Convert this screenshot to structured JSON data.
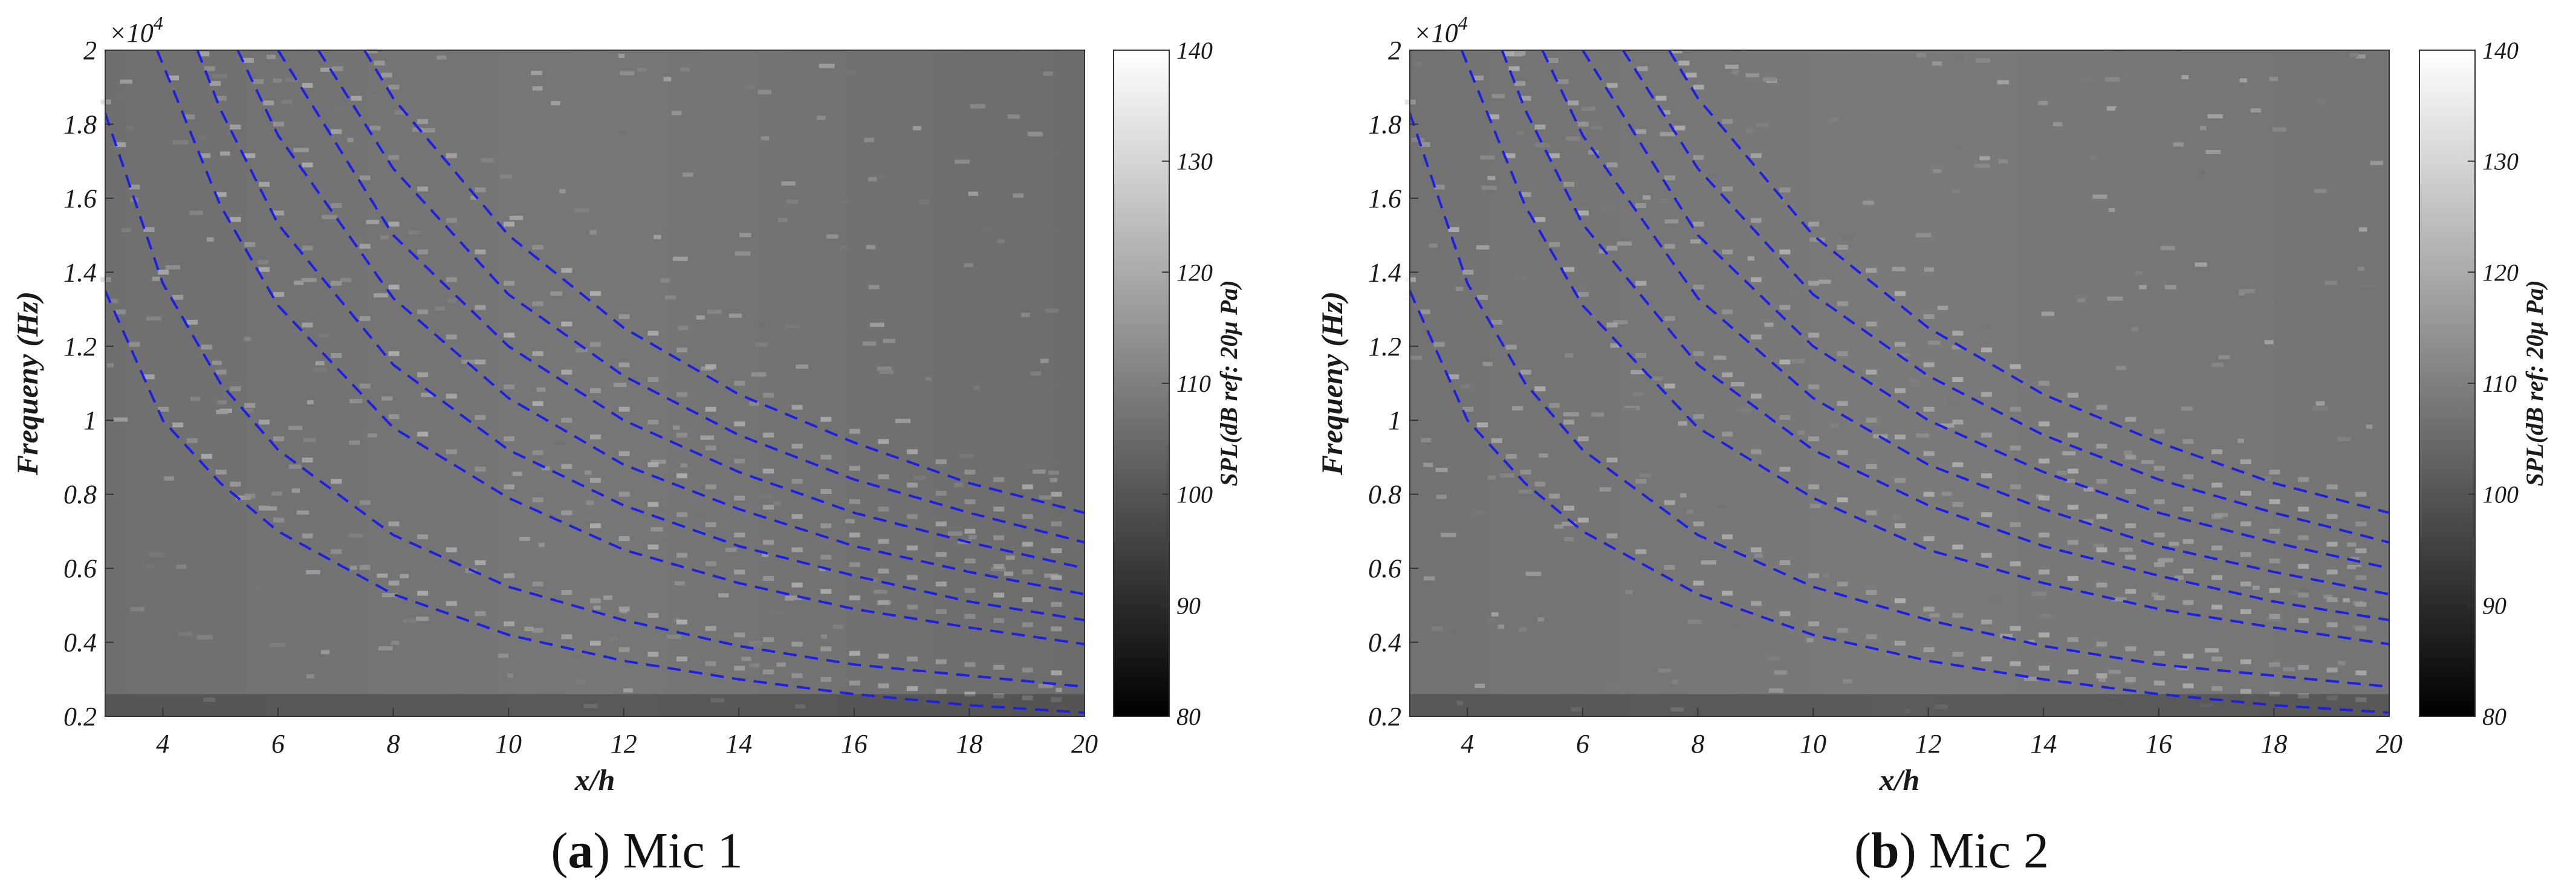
{
  "chart_data": [
    {
      "type": "heatmap",
      "caption_letter": "a",
      "caption_text": "Mic 1",
      "xlabel": "x/h",
      "ylabel": "Frequeny (Hz)",
      "y_multiplier": "×10",
      "y_exponent": "4",
      "xlim": [
        3,
        20
      ],
      "ylim": [
        0.2,
        2
      ],
      "xticks": [
        "4",
        "6",
        "8",
        "10",
        "12",
        "14",
        "16",
        "18",
        "20"
      ],
      "yticks": [
        "0.2",
        "0.4",
        "0.6",
        "0.8",
        "1",
        "1.2",
        "1.4",
        "1.6",
        "1.8",
        "2"
      ],
      "colorbar": {
        "label": "SPL(dB ref: 20μ Pa)",
        "range": [
          80,
          140
        ],
        "ticks": [
          "80",
          "90",
          "100",
          "110",
          "120",
          "130",
          "140"
        ]
      },
      "curve_color": "#1f1fe0",
      "curve_style": "dashed",
      "curves": [
        {
          "x": [
            3,
            4,
            5,
            6,
            8,
            10,
            12,
            14,
            16,
            18,
            20
          ],
          "y": [
            1.35,
            1.0,
            0.83,
            0.7,
            0.53,
            0.42,
            0.35,
            0.3,
            0.26,
            0.23,
            0.21
          ]
        },
        {
          "x": [
            3,
            4,
            5,
            6,
            8,
            10,
            12,
            14,
            16,
            18,
            20
          ],
          "y": [
            1.83,
            1.37,
            1.1,
            0.92,
            0.69,
            0.55,
            0.46,
            0.39,
            0.34,
            0.31,
            0.28
          ]
        },
        {
          "x": [
            3.9,
            5,
            6,
            8,
            10,
            12,
            14,
            16,
            18,
            20
          ],
          "y": [
            2.0,
            1.58,
            1.31,
            0.98,
            0.79,
            0.65,
            0.56,
            0.49,
            0.44,
            0.395
          ]
        },
        {
          "x": [
            4.6,
            5,
            6,
            8,
            10,
            12,
            14,
            16,
            18,
            20
          ],
          "y": [
            2.0,
            1.84,
            1.53,
            1.15,
            0.92,
            0.77,
            0.66,
            0.58,
            0.51,
            0.46
          ]
        },
        {
          "x": [
            5.3,
            6,
            8,
            10,
            12,
            14,
            16,
            18,
            20
          ],
          "y": [
            2.0,
            1.77,
            1.33,
            1.06,
            0.88,
            0.76,
            0.66,
            0.59,
            0.53
          ]
        },
        {
          "x": [
            6.0,
            8,
            10,
            12,
            14,
            16,
            18,
            20
          ],
          "y": [
            2.0,
            1.5,
            1.2,
            1.0,
            0.86,
            0.75,
            0.67,
            0.6
          ]
        },
        {
          "x": [
            6.7,
            8,
            10,
            12,
            14,
            16,
            18,
            20
          ],
          "y": [
            2.0,
            1.68,
            1.34,
            1.12,
            0.96,
            0.84,
            0.75,
            0.67
          ]
        },
        {
          "x": [
            7.5,
            8,
            10,
            12,
            14,
            16,
            18,
            20
          ],
          "y": [
            2.0,
            1.87,
            1.5,
            1.25,
            1.07,
            0.94,
            0.83,
            0.75
          ]
        }
      ]
    },
    {
      "type": "heatmap",
      "caption_letter": "b",
      "caption_text": "Mic 2",
      "xlabel": "x/h",
      "ylabel": "Frequeny (Hz)",
      "y_multiplier": "×10",
      "y_exponent": "4",
      "xlim": [
        3,
        20
      ],
      "ylim": [
        0.2,
        2
      ],
      "xticks": [
        "4",
        "6",
        "8",
        "10",
        "12",
        "14",
        "16",
        "18",
        "20"
      ],
      "yticks": [
        "0.2",
        "0.4",
        "0.6",
        "0.8",
        "1",
        "1.2",
        "1.4",
        "1.6",
        "1.8",
        "2"
      ],
      "colorbar": {
        "label": "SPL(dB ref: 20μ Pa)",
        "range": [
          80,
          140
        ],
        "ticks": [
          "80",
          "90",
          "100",
          "110",
          "120",
          "130",
          "140"
        ]
      },
      "curve_color": "#1f1fe0",
      "curve_style": "dashed",
      "curves": [
        {
          "x": [
            3,
            4,
            5,
            6,
            8,
            10,
            12,
            14,
            16,
            18,
            20
          ],
          "y": [
            1.35,
            1.0,
            0.83,
            0.7,
            0.53,
            0.42,
            0.35,
            0.3,
            0.26,
            0.23,
            0.21
          ]
        },
        {
          "x": [
            3,
            4,
            5,
            6,
            8,
            10,
            12,
            14,
            16,
            18,
            20
          ],
          "y": [
            1.83,
            1.37,
            1.1,
            0.92,
            0.69,
            0.55,
            0.46,
            0.39,
            0.34,
            0.31,
            0.28
          ]
        },
        {
          "x": [
            3.9,
            5,
            6,
            8,
            10,
            12,
            14,
            16,
            18,
            20
          ],
          "y": [
            2.0,
            1.58,
            1.31,
            0.98,
            0.79,
            0.65,
            0.56,
            0.49,
            0.44,
            0.395
          ]
        },
        {
          "x": [
            4.6,
            5,
            6,
            8,
            10,
            12,
            14,
            16,
            18,
            20
          ],
          "y": [
            2.0,
            1.84,
            1.53,
            1.15,
            0.92,
            0.77,
            0.66,
            0.58,
            0.51,
            0.46
          ]
        },
        {
          "x": [
            5.3,
            6,
            8,
            10,
            12,
            14,
            16,
            18,
            20
          ],
          "y": [
            2.0,
            1.77,
            1.33,
            1.06,
            0.88,
            0.76,
            0.66,
            0.59,
            0.53
          ]
        },
        {
          "x": [
            6.0,
            8,
            10,
            12,
            14,
            16,
            18,
            20
          ],
          "y": [
            2.0,
            1.5,
            1.2,
            1.0,
            0.86,
            0.75,
            0.67,
            0.6
          ]
        },
        {
          "x": [
            6.7,
            8,
            10,
            12,
            14,
            16,
            18,
            20
          ],
          "y": [
            2.0,
            1.68,
            1.34,
            1.12,
            0.96,
            0.84,
            0.75,
            0.67
          ]
        },
        {
          "x": [
            7.5,
            8,
            10,
            12,
            14,
            16,
            18,
            20
          ],
          "y": [
            2.0,
            1.87,
            1.5,
            1.25,
            1.07,
            0.94,
            0.83,
            0.75
          ]
        }
      ]
    }
  ]
}
